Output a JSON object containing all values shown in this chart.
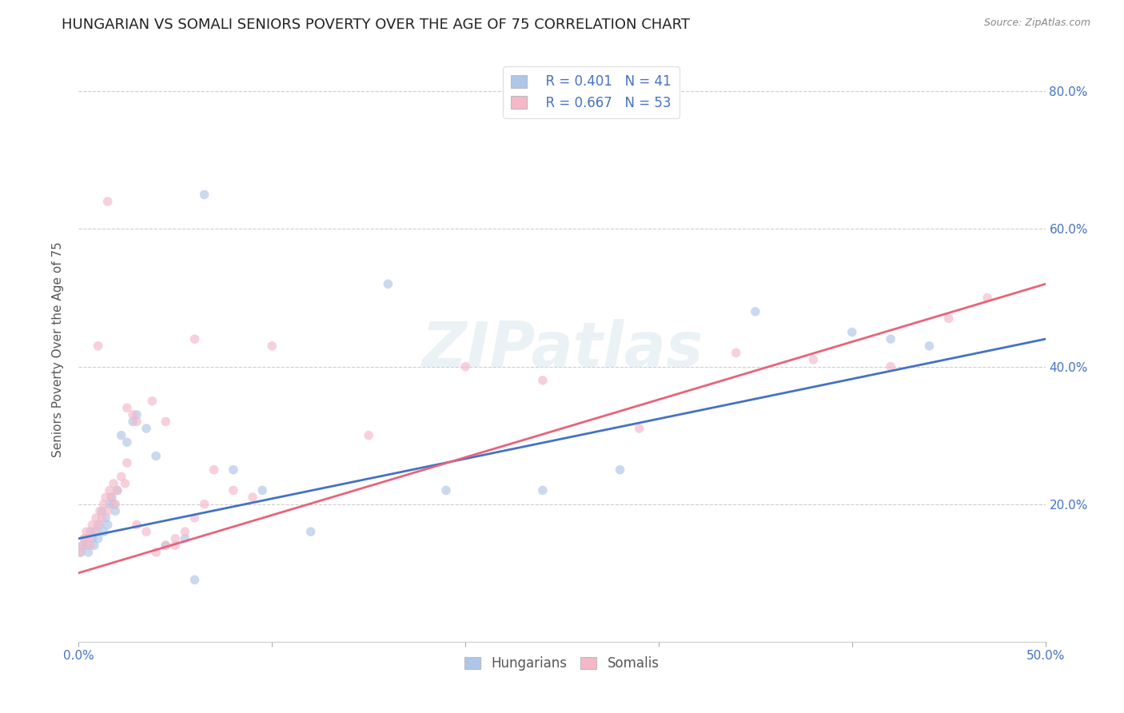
{
  "title": "HUNGARIAN VS SOMALI SENIORS POVERTY OVER THE AGE OF 75 CORRELATION CHART",
  "source": "Source: ZipAtlas.com",
  "ylabel": "Seniors Poverty Over the Age of 75",
  "xlim": [
    0.0,
    0.5
  ],
  "ylim": [
    0.0,
    0.85
  ],
  "background_color": "#ffffff",
  "grid_color": "#c8c8c8",
  "hungarian_color": "#aec6e8",
  "somali_color": "#f4b8c8",
  "line_hungarian_color": "#4472c4",
  "line_somali_color": "#e8637a",
  "watermark": "ZIPatlas",
  "legend_r_hungarian": "R = 0.401",
  "legend_n_hungarian": "N = 41",
  "legend_r_somali": "R = 0.667",
  "legend_n_somali": "N = 53",
  "hungarian_x": [
    0.001,
    0.002,
    0.003,
    0.004,
    0.005,
    0.006,
    0.007,
    0.008,
    0.009,
    0.01,
    0.011,
    0.012,
    0.013,
    0.014,
    0.015,
    0.016,
    0.017,
    0.018,
    0.019,
    0.02,
    0.022,
    0.025,
    0.028,
    0.03,
    0.035,
    0.04,
    0.045,
    0.055,
    0.06,
    0.08,
    0.16,
    0.24,
    0.28,
    0.35,
    0.4,
    0.42,
    0.44,
    0.12,
    0.065,
    0.095,
    0.19
  ],
  "hungarian_y": [
    0.13,
    0.14,
    0.15,
    0.14,
    0.13,
    0.16,
    0.15,
    0.14,
    0.16,
    0.15,
    0.17,
    0.19,
    0.16,
    0.18,
    0.17,
    0.2,
    0.21,
    0.2,
    0.19,
    0.22,
    0.3,
    0.29,
    0.32,
    0.33,
    0.31,
    0.27,
    0.14,
    0.15,
    0.09,
    0.25,
    0.52,
    0.22,
    0.25,
    0.48,
    0.45,
    0.44,
    0.43,
    0.16,
    0.65,
    0.22,
    0.22
  ],
  "somali_x": [
    0.001,
    0.002,
    0.003,
    0.004,
    0.005,
    0.006,
    0.007,
    0.008,
    0.009,
    0.01,
    0.011,
    0.012,
    0.013,
    0.014,
    0.015,
    0.016,
    0.017,
    0.018,
    0.019,
    0.02,
    0.022,
    0.024,
    0.025,
    0.028,
    0.03,
    0.035,
    0.04,
    0.045,
    0.05,
    0.055,
    0.06,
    0.065,
    0.07,
    0.08,
    0.09,
    0.1,
    0.025,
    0.03,
    0.038,
    0.045,
    0.05,
    0.06,
    0.15,
    0.2,
    0.24,
    0.29,
    0.34,
    0.38,
    0.42,
    0.45,
    0.47,
    0.01,
    0.015
  ],
  "somali_y": [
    0.13,
    0.14,
    0.15,
    0.16,
    0.15,
    0.14,
    0.17,
    0.16,
    0.18,
    0.17,
    0.19,
    0.18,
    0.2,
    0.21,
    0.19,
    0.22,
    0.21,
    0.23,
    0.2,
    0.22,
    0.24,
    0.23,
    0.26,
    0.33,
    0.17,
    0.16,
    0.13,
    0.14,
    0.15,
    0.16,
    0.44,
    0.2,
    0.25,
    0.22,
    0.21,
    0.43,
    0.34,
    0.32,
    0.35,
    0.32,
    0.14,
    0.18,
    0.3,
    0.4,
    0.38,
    0.31,
    0.42,
    0.41,
    0.4,
    0.47,
    0.5,
    0.43,
    0.64
  ],
  "xtick_labels_ends": [
    "0.0%",
    "50.0%"
  ],
  "ytick_labels_right": [
    "20.0%",
    "40.0%",
    "60.0%",
    "80.0%"
  ],
  "ytick_positions": [
    0.2,
    0.4,
    0.6,
    0.8
  ],
  "marker_size": 70,
  "marker_alpha": 0.65,
  "title_fontsize": 13,
  "axis_label_fontsize": 11,
  "tick_fontsize": 11,
  "legend_fontsize": 12
}
